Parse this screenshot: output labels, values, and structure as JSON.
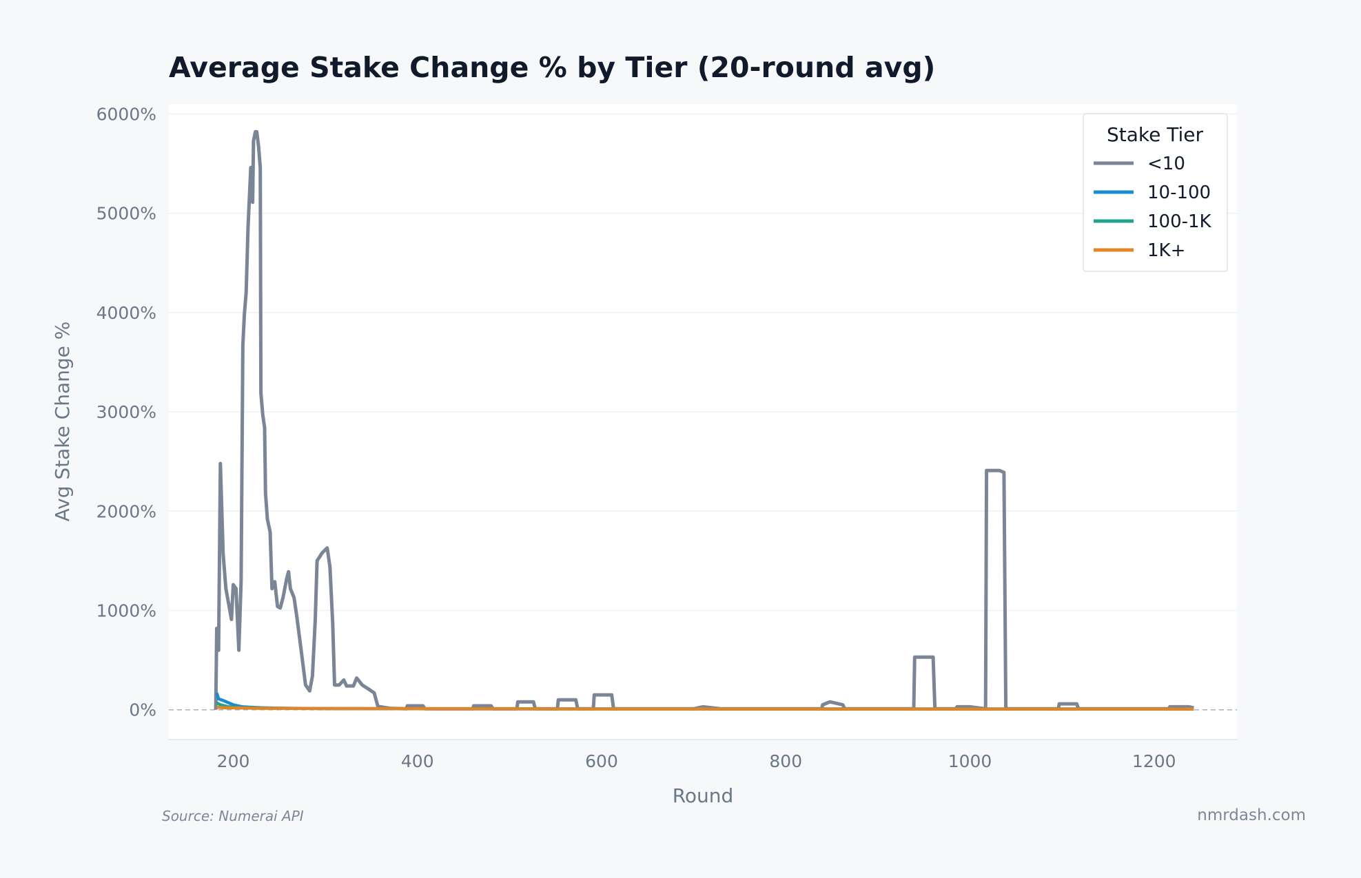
{
  "chart_data": {
    "type": "line",
    "title": "Average Stake Change % by Tier (20-round avg)",
    "xlabel": "Round",
    "ylabel": "Avg Stake Change %",
    "xlim": [
      130,
      1290
    ],
    "ylim": [
      -300,
      6100
    ],
    "xticks": [
      200,
      400,
      600,
      800,
      1000,
      1200
    ],
    "yticks": [
      0,
      1000,
      2000,
      3000,
      4000,
      5000,
      6000
    ],
    "ytick_suffix": "%",
    "grid": true,
    "zero_line": "dashed",
    "legend": {
      "title": "Stake Tier",
      "placement": "top-right"
    },
    "series": [
      {
        "name": "<10",
        "color": "#7a8696",
        "points": [
          [
            181,
            0
          ],
          [
            182,
            820
          ],
          [
            184,
            600
          ],
          [
            186,
            2480
          ],
          [
            189,
            1570
          ],
          [
            192,
            1220
          ],
          [
            198,
            910
          ],
          [
            200,
            1260
          ],
          [
            203,
            1220
          ],
          [
            206,
            600
          ],
          [
            208.5,
            1300
          ],
          [
            210.4,
            3670
          ],
          [
            212,
            3980
          ],
          [
            214,
            4200
          ],
          [
            216,
            4850
          ],
          [
            219,
            5460
          ],
          [
            221,
            5110
          ],
          [
            222,
            5730
          ],
          [
            224,
            5820
          ],
          [
            225.5,
            5820
          ],
          [
            227.4,
            5680
          ],
          [
            229.3,
            5460
          ],
          [
            230,
            3190
          ],
          [
            232,
            2970
          ],
          [
            234,
            2840
          ],
          [
            235,
            2180
          ],
          [
            237,
            1920
          ],
          [
            240,
            1790
          ],
          [
            242,
            1220
          ],
          [
            245,
            1290
          ],
          [
            248,
            1040
          ],
          [
            251,
            1025
          ],
          [
            254,
            1130
          ],
          [
            258,
            1320
          ],
          [
            260,
            1390
          ],
          [
            262,
            1220
          ],
          [
            266,
            1130
          ],
          [
            269,
            940
          ],
          [
            273,
            650
          ],
          [
            278.5,
            250
          ],
          [
            283,
            190
          ],
          [
            286,
            340
          ],
          [
            289,
            910
          ],
          [
            291,
            1500
          ],
          [
            296.5,
            1580
          ],
          [
            302,
            1630
          ],
          [
            305,
            1440
          ],
          [
            308,
            870
          ],
          [
            310,
            250
          ],
          [
            315,
            250
          ],
          [
            320,
            300
          ],
          [
            323,
            240
          ],
          [
            330.5,
            240
          ],
          [
            334,
            320
          ],
          [
            340,
            250
          ],
          [
            346.6,
            210
          ],
          [
            353,
            170
          ],
          [
            357,
            35
          ],
          [
            370,
            15
          ],
          [
            388,
            10
          ],
          [
            389,
            40
          ],
          [
            406,
            40
          ],
          [
            408,
            10
          ],
          [
            460,
            10
          ],
          [
            461,
            40
          ],
          [
            480,
            40
          ],
          [
            482,
            10
          ],
          [
            508,
            10
          ],
          [
            509,
            80
          ],
          [
            526,
            80
          ],
          [
            528,
            10
          ],
          [
            552,
            10
          ],
          [
            553,
            100
          ],
          [
            572,
            100
          ],
          [
            574,
            10
          ],
          [
            591,
            10
          ],
          [
            592,
            150
          ],
          [
            611,
            150
          ],
          [
            613,
            10
          ],
          [
            700,
            10
          ],
          [
            710,
            30
          ],
          [
            720,
            20
          ],
          [
            730,
            10
          ],
          [
            839,
            10
          ],
          [
            840,
            50
          ],
          [
            848,
            80
          ],
          [
            862,
            50
          ],
          [
            864,
            10
          ],
          [
            939,
            10
          ],
          [
            940,
            530
          ],
          [
            960,
            530
          ],
          [
            962,
            10
          ],
          [
            985,
            10
          ],
          [
            986,
            30
          ],
          [
            1000,
            30
          ],
          [
            1017,
            10
          ],
          [
            1018,
            2410
          ],
          [
            1032,
            2410
          ],
          [
            1037,
            2390
          ],
          [
            1039,
            10
          ],
          [
            1096,
            10
          ],
          [
            1097,
            60
          ],
          [
            1116,
            60
          ],
          [
            1118,
            10
          ],
          [
            1216,
            10
          ],
          [
            1217,
            30
          ],
          [
            1238,
            30
          ],
          [
            1243,
            20
          ]
        ]
      },
      {
        "name": "10-100",
        "color": "#1a8bd0",
        "points": [
          [
            182,
            170
          ],
          [
            184,
            110
          ],
          [
            190,
            90
          ],
          [
            200,
            50
          ],
          [
            210,
            30
          ],
          [
            220,
            25
          ],
          [
            230,
            20
          ],
          [
            260,
            15
          ],
          [
            300,
            12
          ],
          [
            400,
            10
          ],
          [
            800,
            8
          ],
          [
            1243,
            8
          ]
        ]
      },
      {
        "name": "100-1K",
        "color": "#1fa38c",
        "points": [
          [
            182,
            70
          ],
          [
            186,
            50
          ],
          [
            195,
            30
          ],
          [
            210,
            20
          ],
          [
            260,
            15
          ],
          [
            400,
            10
          ],
          [
            1243,
            8
          ]
        ]
      },
      {
        "name": "1K+",
        "color": "#e0852a",
        "points": [
          [
            182,
            25
          ],
          [
            190,
            20
          ],
          [
            230,
            15
          ],
          [
            400,
            10
          ],
          [
            800,
            8
          ],
          [
            1243,
            8
          ]
        ]
      }
    ]
  },
  "footer": {
    "source": "Source: Numerai API",
    "brand": "nmrdash.com"
  }
}
